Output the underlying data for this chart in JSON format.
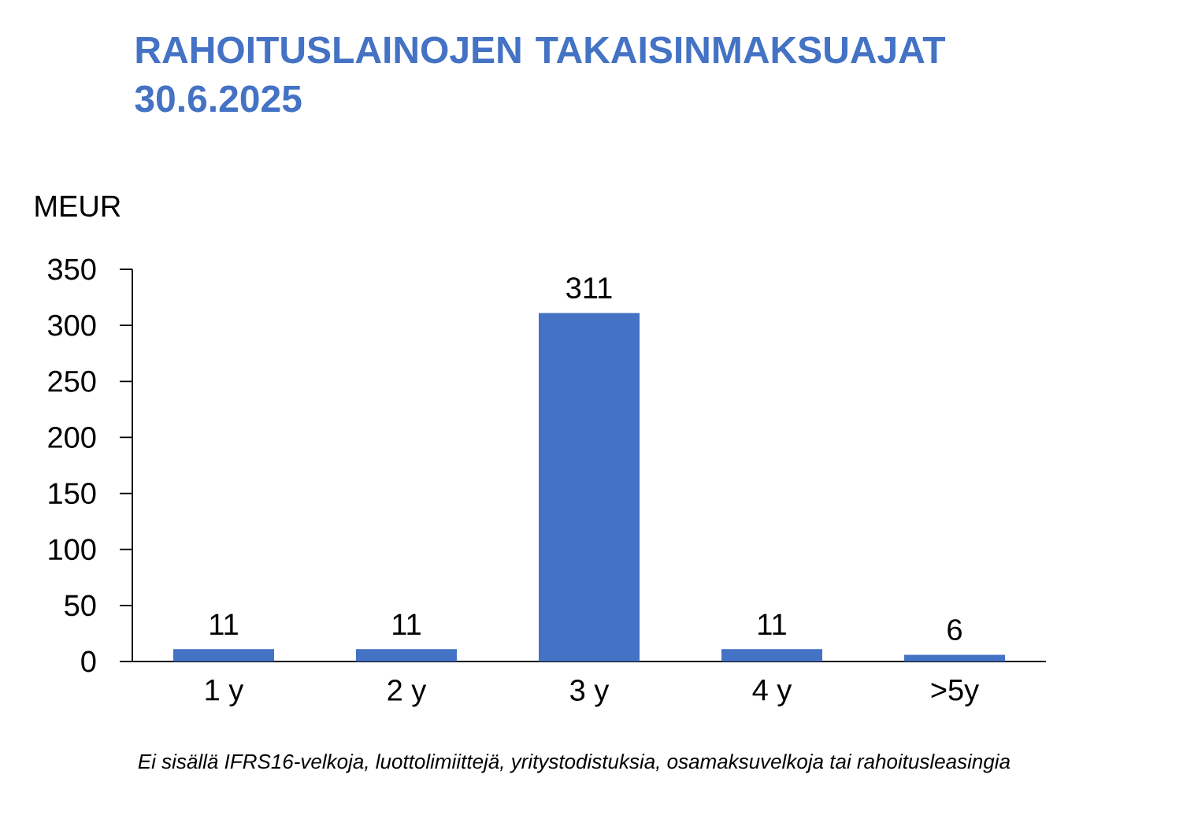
{
  "chart_data": {
    "type": "bar",
    "title": "RAHOITUSLAINOJEN TAKAISINMAKSUAJAT 30.6.2025",
    "ylabel": "MEUR",
    "categories": [
      "1 y",
      "2 y",
      "3 y",
      "4 y",
      ">5y"
    ],
    "values": [
      11,
      11,
      311,
      11,
      6
    ],
    "color": "#4472c4",
    "ylim": [
      0,
      350
    ],
    "yticks": [
      0,
      50,
      100,
      150,
      200,
      250,
      300,
      350
    ],
    "data_labels": true,
    "annotations": [
      "Ei sisällä IFRS16-velkoja, luottolimiittejä, yritystodistuksia, osamaksuvelkoja tai rahoitusleasingia"
    ]
  }
}
